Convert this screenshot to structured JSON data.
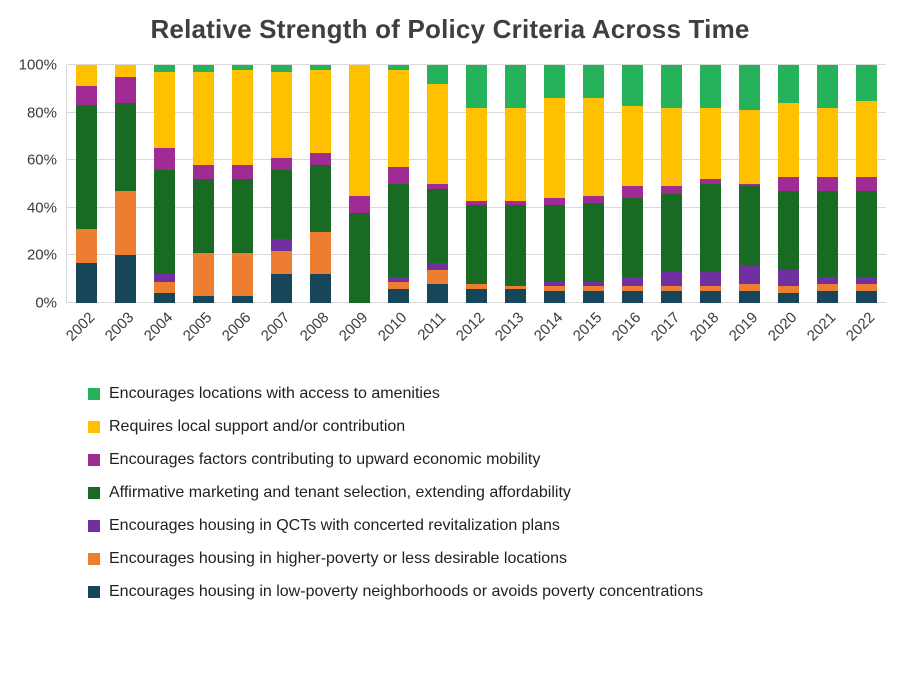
{
  "page": {
    "background": "#FFFFFF"
  },
  "chart_data": {
    "type": "bar",
    "stacked": true,
    "percent_stacked": true,
    "title": "Relative Strength of Policy Criteria Across Time",
    "xlabel": "",
    "ylabel": "",
    "ylim": [
      0,
      100
    ],
    "grid": "horizontal",
    "legend_position": "bottom-left",
    "y_ticks": [
      "0%",
      "20%",
      "40%",
      "60%",
      "80%",
      "100%"
    ],
    "categories": [
      "2002",
      "2003",
      "2004",
      "2005",
      "2006",
      "2007",
      "2008",
      "2009",
      "2010",
      "2011",
      "2012",
      "2013",
      "2014",
      "2015",
      "2016",
      "2017",
      "2018",
      "2019",
      "2020",
      "2021",
      "2022"
    ],
    "series": [
      {
        "name": "Encourages housing in low-poverty neighborhoods or avoids poverty concentrations",
        "color": "#17465A",
        "values": [
          17,
          20,
          4,
          3,
          3,
          12,
          12,
          0,
          6,
          8,
          6,
          6,
          5,
          5,
          5,
          5,
          5,
          5,
          4,
          5,
          5
        ]
      },
      {
        "name": "Encourages housing in higher-poverty or less desirable locations",
        "color": "#ED7D31",
        "values": [
          14,
          27,
          5,
          18,
          18,
          10,
          18,
          0,
          3,
          6,
          2,
          1,
          2,
          2,
          2,
          2,
          2,
          3,
          3,
          3,
          3
        ]
      },
      {
        "name": "Encourages housing in QCTs with concerted revitalization plans",
        "color": "#7030A0",
        "values": [
          0,
          0,
          3,
          0,
          0,
          5,
          0,
          0,
          2,
          3,
          0,
          0,
          2,
          2,
          4,
          6,
          6,
          8,
          7,
          3,
          3
        ]
      },
      {
        "name": "Affirmative marketing and tenant selection, extending affordability",
        "color": "#196B24",
        "values": [
          52,
          37,
          44,
          31,
          31,
          29,
          28,
          38,
          39,
          31,
          33,
          34,
          32,
          33,
          33,
          33,
          37,
          33,
          33,
          36,
          36
        ]
      },
      {
        "name": "Encourages factors contributing to upward economic mobility",
        "color": "#A02B93",
        "values": [
          8,
          11,
          9,
          6,
          6,
          5,
          5,
          7,
          7,
          2,
          2,
          2,
          3,
          3,
          5,
          3,
          2,
          1,
          6,
          6,
          6
        ]
      },
      {
        "name": "Requires local support and/or contribution",
        "color": "#FFC000",
        "values": [
          9,
          5,
          32,
          39,
          40,
          36,
          35,
          55,
          41,
          42,
          39,
          39,
          42,
          41,
          34,
          33,
          30,
          31,
          31,
          29,
          32
        ]
      },
      {
        "name": "Encourages locations with access to amenities",
        "color": "#25B25A",
        "values": [
          0,
          0,
          3,
          3,
          2,
          3,
          2,
          0,
          2,
          8,
          18,
          18,
          14,
          14,
          17,
          18,
          18,
          19,
          16,
          18,
          15
        ]
      }
    ]
  }
}
